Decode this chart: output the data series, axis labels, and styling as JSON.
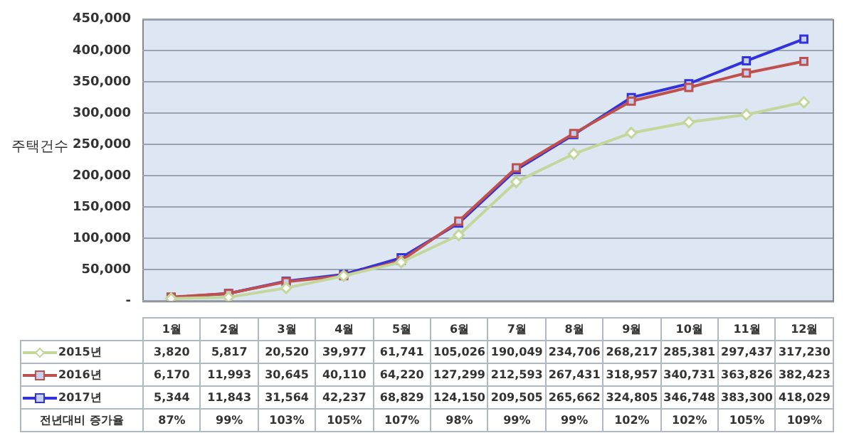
{
  "chart_data": {
    "type": "line",
    "ylabel": "주택건수",
    "categories": [
      "1월",
      "2월",
      "3월",
      "4월",
      "5월",
      "6월",
      "7월",
      "8월",
      "9월",
      "10월",
      "11월",
      "12월"
    ],
    "series": [
      {
        "name": "2015년",
        "color": "#c3d69b",
        "marker": "diamond",
        "values": [
          3820,
          5817,
          20520,
          39977,
          61741,
          105026,
          190049,
          234706,
          268217,
          285381,
          297437,
          317230
        ],
        "value_labels": [
          "3,820",
          "5,817",
          "20,520",
          "39,977",
          "61,741",
          "105,026",
          "190,049",
          "234,706",
          "268,217",
          "285,381",
          "297,437",
          "317,230"
        ]
      },
      {
        "name": "2016년",
        "color": "#c0504d",
        "marker": "square",
        "values": [
          6170,
          11993,
          30645,
          40110,
          64220,
          127299,
          212593,
          267431,
          318957,
          340731,
          363826,
          382423
        ],
        "value_labels": [
          "6,170",
          "11,993",
          "30,645",
          "40,110",
          "64,220",
          "127,299",
          "212,593",
          "267,431",
          "318,957",
          "340,731",
          "363,826",
          "382,423"
        ]
      },
      {
        "name": "2017년",
        "color": "#3333dd",
        "marker": "square",
        "values": [
          5344,
          11843,
          31564,
          42237,
          68829,
          124150,
          209505,
          265662,
          324805,
          346748,
          383300,
          418029
        ],
        "value_labels": [
          "5,344",
          "11,843",
          "31,564",
          "42,237",
          "68,829",
          "124,150",
          "209,505",
          "265,662",
          "324,805",
          "346,748",
          "383,300",
          "418,029"
        ]
      }
    ],
    "annotations": [
      "전년대비 증가율",
      "87%",
      "99%",
      "103%",
      "105%",
      "107%",
      "98%",
      "99%",
      "99%",
      "102%",
      "102%",
      "105%",
      "109%"
    ],
    "ylim": [
      0,
      450000
    ],
    "yticks": [
      {
        "value": 0,
        "label": "-"
      },
      {
        "value": 50000,
        "label": "50,000"
      },
      {
        "value": 100000,
        "label": "100,000"
      },
      {
        "value": 150000,
        "label": "150,000"
      },
      {
        "value": 200000,
        "label": "200,000"
      },
      {
        "value": 250000,
        "label": "250,000"
      },
      {
        "value": 300000,
        "label": "300,000"
      },
      {
        "value": 350000,
        "label": "350,000"
      },
      {
        "value": 400000,
        "label": "400,000"
      },
      {
        "value": 450000,
        "label": "450,000"
      }
    ],
    "grid": "y",
    "legend": "bottom"
  }
}
